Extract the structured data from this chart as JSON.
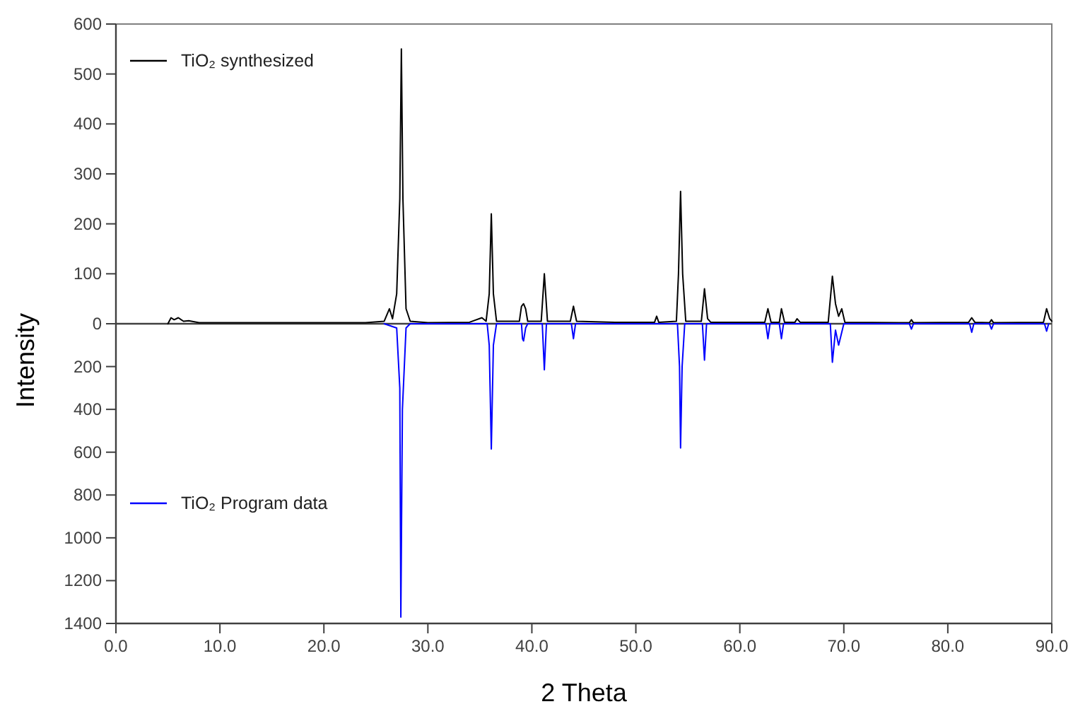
{
  "chart_data": {
    "type": "line",
    "xlabel": "2 Theta",
    "ylabel": "Intensity",
    "xlim": [
      0,
      90
    ],
    "xticks": [
      {
        "value": 0,
        "label": "0.0"
      },
      {
        "value": 10,
        "label": "10.0"
      },
      {
        "value": 20,
        "label": "20.0"
      },
      {
        "value": 30,
        "label": "30.0"
      },
      {
        "value": 40,
        "label": "40.0"
      },
      {
        "value": 50,
        "label": "50.0"
      },
      {
        "value": 60,
        "label": "60.0"
      },
      {
        "value": 70,
        "label": "70.0"
      },
      {
        "value": 80,
        "label": "80.0"
      },
      {
        "value": 90,
        "label": "90.0"
      }
    ],
    "ylim": [
      1400,
      -1400
    ],
    "yticks": [
      200,
      400,
      600,
      800,
      1000,
      1200,
      1400
    ],
    "y2lim": [
      -600,
      600
    ],
    "y2ticks": [
      0,
      100,
      200,
      300,
      400,
      500,
      600
    ],
    "ref_lines": [
      {
        "axis": "y2",
        "value": 0,
        "color": "#404040"
      }
    ],
    "legend": "left",
    "grid": false,
    "line_style": "solid",
    "marker": "none",
    "series": [
      {
        "name": "TiO₂ synthesized",
        "color": "#000000",
        "axis": "y2",
        "x": [
          5,
          5.3,
          5.6,
          6,
          6.5,
          7,
          8,
          10,
          15,
          20,
          24,
          25.8,
          26.3,
          26.6,
          27.0,
          27.3,
          27.45,
          27.6,
          27.9,
          28.3,
          30,
          34,
          35.2,
          35.6,
          35.9,
          36.1,
          36.3,
          36.6,
          38.8,
          39.0,
          39.2,
          39.4,
          39.6,
          40.9,
          41.2,
          41.5,
          43.7,
          44.0,
          44.3,
          48,
          51.8,
          52.0,
          52.2,
          53.9,
          54.1,
          54.3,
          54.5,
          54.8,
          56.3,
          56.6,
          56.9,
          57.2,
          62.4,
          62.7,
          63.0,
          63.8,
          64.0,
          64.3,
          65.3,
          65.5,
          65.8,
          68.5,
          68.9,
          69.2,
          69.5,
          69.8,
          70.1,
          76.3,
          76.5,
          76.7,
          82.0,
          82.3,
          82.6,
          84.0,
          84.2,
          84.4,
          89.2,
          89.5,
          89.8,
          90
        ],
        "values": [
          0,
          12,
          8,
          12,
          5,
          6,
          2,
          2,
          2,
          2,
          2,
          5,
          30,
          10,
          60,
          250,
          550,
          250,
          30,
          5,
          2,
          3,
          12,
          5,
          60,
          220,
          60,
          5,
          5,
          35,
          40,
          30,
          5,
          5,
          100,
          5,
          5,
          35,
          5,
          3,
          3,
          15,
          3,
          5,
          100,
          265,
          100,
          5,
          5,
          70,
          10,
          3,
          3,
          30,
          3,
          3,
          30,
          3,
          3,
          10,
          3,
          3,
          95,
          40,
          15,
          30,
          3,
          2,
          8,
          2,
          3,
          12,
          3,
          2,
          8,
          2,
          3,
          30,
          10,
          5
        ]
      },
      {
        "name": "TiO₂ Program data",
        "color": "#0000ff",
        "x": [
          25.8,
          27.0,
          27.3,
          27.4,
          27.55,
          27.9,
          28.3,
          35.7,
          35.9,
          36.1,
          36.3,
          36.6,
          39.0,
          39.1,
          39.2,
          39.4,
          39.6,
          41.0,
          41.2,
          41.4,
          43.8,
          44.0,
          44.2,
          54.0,
          54.2,
          54.3,
          54.45,
          54.7,
          56.4,
          56.6,
          56.8,
          62.5,
          62.7,
          62.9,
          63.8,
          64.0,
          64.2,
          68.7,
          68.9,
          69.2,
          69.5,
          69.7,
          70.0,
          76.3,
          76.5,
          76.7,
          82.1,
          82.3,
          82.5,
          84.0,
          84.2,
          84.4,
          89.3,
          89.5,
          89.7
        ],
        "values": [
          0,
          20,
          300,
          1370,
          400,
          20,
          0,
          0,
          100,
          585,
          100,
          0,
          0,
          70,
          80,
          20,
          0,
          0,
          215,
          0,
          0,
          70,
          0,
          0,
          200,
          580,
          200,
          0,
          0,
          170,
          0,
          0,
          70,
          0,
          0,
          70,
          0,
          0,
          180,
          30,
          100,
          60,
          0,
          0,
          25,
          0,
          0,
          40,
          0,
          0,
          25,
          0,
          0,
          35,
          0
        ]
      }
    ]
  }
}
